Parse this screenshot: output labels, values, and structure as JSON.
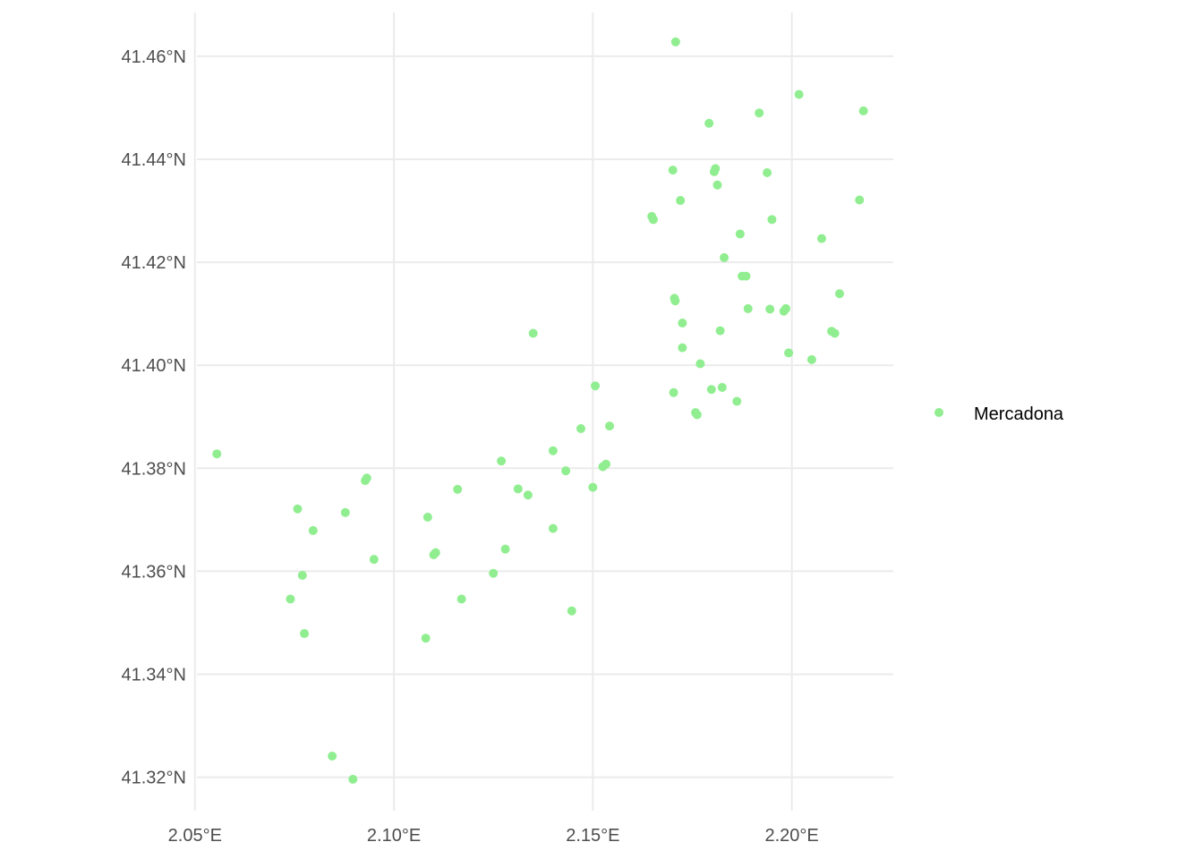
{
  "chart_data": {
    "type": "scatter",
    "title": "",
    "xlabel": "",
    "ylabel": "",
    "xlim": [
      2.0505,
      2.2255
    ],
    "ylim": [
      41.3135,
      41.4685
    ],
    "x_ticks": [
      2.05,
      2.1,
      2.15,
      2.2
    ],
    "x_tick_labels": [
      "2.05°E",
      "2.10°E",
      "2.15°E",
      "2.20°E"
    ],
    "y_ticks": [
      41.32,
      41.34,
      41.36,
      41.38,
      41.4,
      41.42,
      41.44,
      41.46
    ],
    "y_tick_labels": [
      "41.32°N",
      "41.34°N",
      "41.36°N",
      "41.38°N",
      "41.40°N",
      "41.42°N",
      "41.44°N",
      "41.46°N"
    ],
    "grid": true,
    "legend_position": "right",
    "series": [
      {
        "name": "Mercadona",
        "color": "#90ee90",
        "points": [
          [
            2.1708,
            41.4628
          ],
          [
            2.2018,
            41.4526
          ],
          [
            2.1792,
            41.447
          ],
          [
            2.1918,
            41.449
          ],
          [
            2.218,
            41.4494
          ],
          [
            2.1701,
            41.4379
          ],
          [
            2.1805,
            41.4376
          ],
          [
            2.1808,
            41.4382
          ],
          [
            2.1938,
            41.4374
          ],
          [
            2.1813,
            41.435
          ],
          [
            2.172,
            41.432
          ],
          [
            2.217,
            41.4321
          ],
          [
            2.1648,
            41.4289
          ],
          [
            2.1652,
            41.4283
          ],
          [
            2.195,
            41.4283
          ],
          [
            2.187,
            41.4255
          ],
          [
            2.2075,
            41.4246
          ],
          [
            2.183,
            41.4209
          ],
          [
            2.1875,
            41.4173
          ],
          [
            2.1885,
            41.4173
          ],
          [
            2.212,
            41.4139
          ],
          [
            2.1705,
            41.413
          ],
          [
            2.1707,
            41.4125
          ],
          [
            2.189,
            41.411
          ],
          [
            2.1945,
            41.4109
          ],
          [
            2.198,
            41.4105
          ],
          [
            2.1985,
            41.411
          ],
          [
            2.1725,
            41.4082
          ],
          [
            2.182,
            41.4067
          ],
          [
            2.21,
            41.4066
          ],
          [
            2.2108,
            41.4062
          ],
          [
            2.1725,
            41.4034
          ],
          [
            2.1992,
            41.4024
          ],
          [
            2.205,
            41.4011
          ],
          [
            2.177,
            41.4003
          ],
          [
            2.1825,
            41.3957
          ],
          [
            2.1798,
            41.3953
          ],
          [
            2.1703,
            41.3947
          ],
          [
            2.1862,
            41.393
          ],
          [
            2.1758,
            41.3908
          ],
          [
            2.1762,
            41.3904
          ],
          [
            2.1506,
            41.396
          ],
          [
            2.135,
            41.4062
          ],
          [
            2.1542,
            41.3882
          ],
          [
            2.147,
            41.3877
          ],
          [
            2.14,
            41.3834
          ],
          [
            2.127,
            41.3814
          ],
          [
            2.1525,
            41.3803
          ],
          [
            2.1533,
            41.3808
          ],
          [
            2.1432,
            41.3795
          ],
          [
            2.15,
            41.3763
          ],
          [
            2.1312,
            41.376
          ],
          [
            2.1337,
            41.3748
          ],
          [
            2.116,
            41.3759
          ],
          [
            2.1085,
            41.3705
          ],
          [
            2.14,
            41.3683
          ],
          [
            2.128,
            41.3643
          ],
          [
            2.11,
            41.3632
          ],
          [
            2.1105,
            41.3636
          ],
          [
            2.125,
            41.3596
          ],
          [
            2.117,
            41.3546
          ],
          [
            2.1447,
            41.3523
          ],
          [
            2.108,
            41.347
          ],
          [
            2.0928,
            41.3776
          ],
          [
            2.0932,
            41.3781
          ],
          [
            2.0878,
            41.3714
          ],
          [
            2.0758,
            41.3721
          ],
          [
            2.0797,
            41.3679
          ],
          [
            2.095,
            41.3623
          ],
          [
            2.077,
            41.3592
          ],
          [
            2.074,
            41.3546
          ],
          [
            2.0775,
            41.3479
          ],
          [
            2.0555,
            41.3828
          ],
          [
            2.0845,
            41.3241
          ],
          [
            2.0897,
            41.3196
          ]
        ]
      }
    ]
  }
}
